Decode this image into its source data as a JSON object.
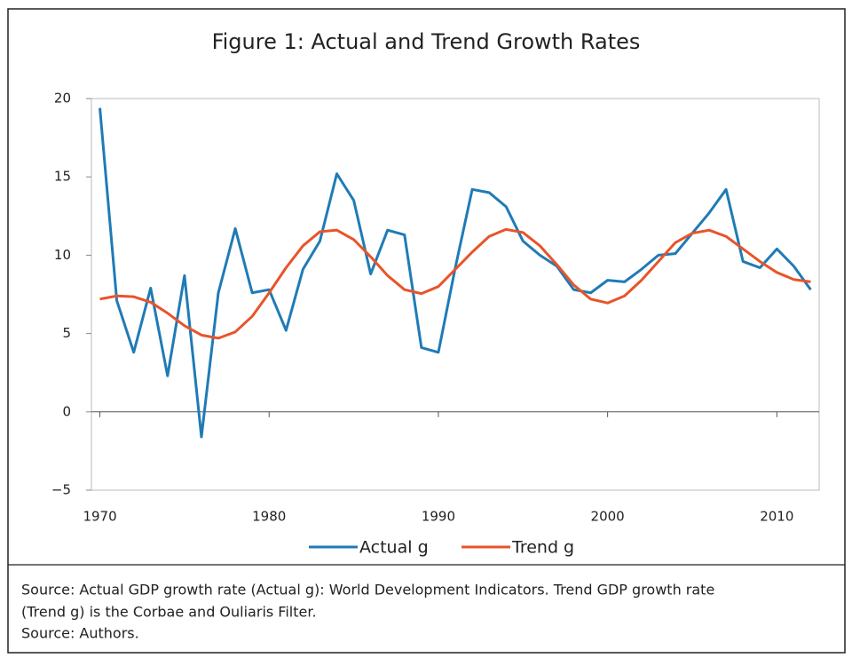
{
  "chart_data": {
    "type": "line",
    "title": "Figure 1: Actual and Trend Growth Rates",
    "x": [
      1970,
      1971,
      1972,
      1973,
      1974,
      1975,
      1976,
      1977,
      1978,
      1979,
      1980,
      1981,
      1982,
      1983,
      1984,
      1985,
      1986,
      1987,
      1988,
      1989,
      1990,
      1991,
      1992,
      1993,
      1994,
      1995,
      1996,
      1997,
      1998,
      1999,
      2000,
      2001,
      2002,
      2003,
      2004,
      2005,
      2006,
      2007,
      2008,
      2009,
      2010,
      2011,
      2012
    ],
    "series": [
      {
        "name": "Actual g",
        "color": "#1f7bb6",
        "values": [
          19.4,
          7.1,
          3.8,
          7.9,
          2.3,
          8.7,
          -1.6,
          7.6,
          11.7,
          7.6,
          7.8,
          5.2,
          9.1,
          10.9,
          15.2,
          13.5,
          8.8,
          11.6,
          11.3,
          4.1,
          3.8,
          9.2,
          14.2,
          14.0,
          13.1,
          10.9,
          10.0,
          9.3,
          7.8,
          7.6,
          8.4,
          8.3,
          9.1,
          10.0,
          10.1,
          11.4,
          12.7,
          14.2,
          9.6,
          9.2,
          10.4,
          9.3,
          7.8
        ]
      },
      {
        "name": "Trend g",
        "color": "#e8542a",
        "values": [
          7.2,
          7.4,
          7.35,
          7.0,
          6.3,
          5.5,
          4.9,
          4.7,
          5.1,
          6.1,
          7.6,
          9.2,
          10.6,
          11.5,
          11.6,
          11.0,
          9.9,
          8.7,
          7.8,
          7.55,
          8.0,
          9.1,
          10.2,
          11.2,
          11.65,
          11.45,
          10.6,
          9.4,
          8.1,
          7.2,
          6.95,
          7.4,
          8.4,
          9.6,
          10.8,
          11.4,
          11.6,
          11.2,
          10.4,
          9.6,
          8.9,
          8.45,
          8.3
        ]
      }
    ],
    "xlim": [
      1969.5,
      2012.5
    ],
    "xticks": [
      1970,
      1980,
      1990,
      2000,
      2010
    ],
    "ylim": [
      -5,
      20
    ],
    "yticks": [
      {
        "value": -5,
        "label": "−5"
      },
      0,
      5,
      10,
      15,
      20
    ],
    "notes": [
      "Source: Actual GDP growth rate (Actual g): World Development Indicators. Trend GDP growth rate",
      "(Trend g) is the Corbae and Ouliaris Filter.",
      "Source: Authors."
    ]
  }
}
